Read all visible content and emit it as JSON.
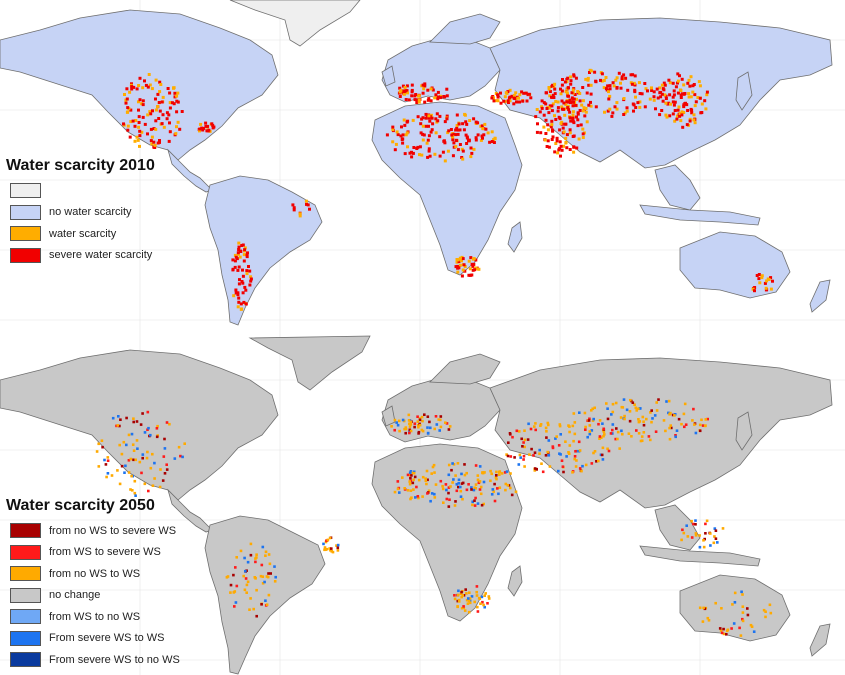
{
  "map_2010": {
    "title": "Water scarcity 2010",
    "land_color": "#c6d3f5",
    "legend": [
      {
        "label": "",
        "color": "#efefef"
      },
      {
        "label": "no water scarcity",
        "color": "#c6d3f5"
      },
      {
        "label": "water scarcity",
        "color": "#ffad00"
      },
      {
        "label": "severe water scarcity",
        "color": "#f10000"
      }
    ]
  },
  "map_2050": {
    "title": "Water scarcity 2050",
    "land_color": "#c8c8c8",
    "legend": [
      {
        "label": "from no WS to severe WS",
        "color": "#a80000"
      },
      {
        "label": "from WS to severe WS",
        "color": "#ff1a1a"
      },
      {
        "label": "from no WS to WS",
        "color": "#ffaa00"
      },
      {
        "label": "no change",
        "color": "#c8c8c8"
      },
      {
        "label": "from WS to no WS",
        "color": "#6fa8f5"
      },
      {
        "label": "From severe WS to WS",
        "color": "#1d74f0"
      },
      {
        "label": "From severe WS to no WS",
        "color": "#0a3a9e"
      }
    ]
  }
}
